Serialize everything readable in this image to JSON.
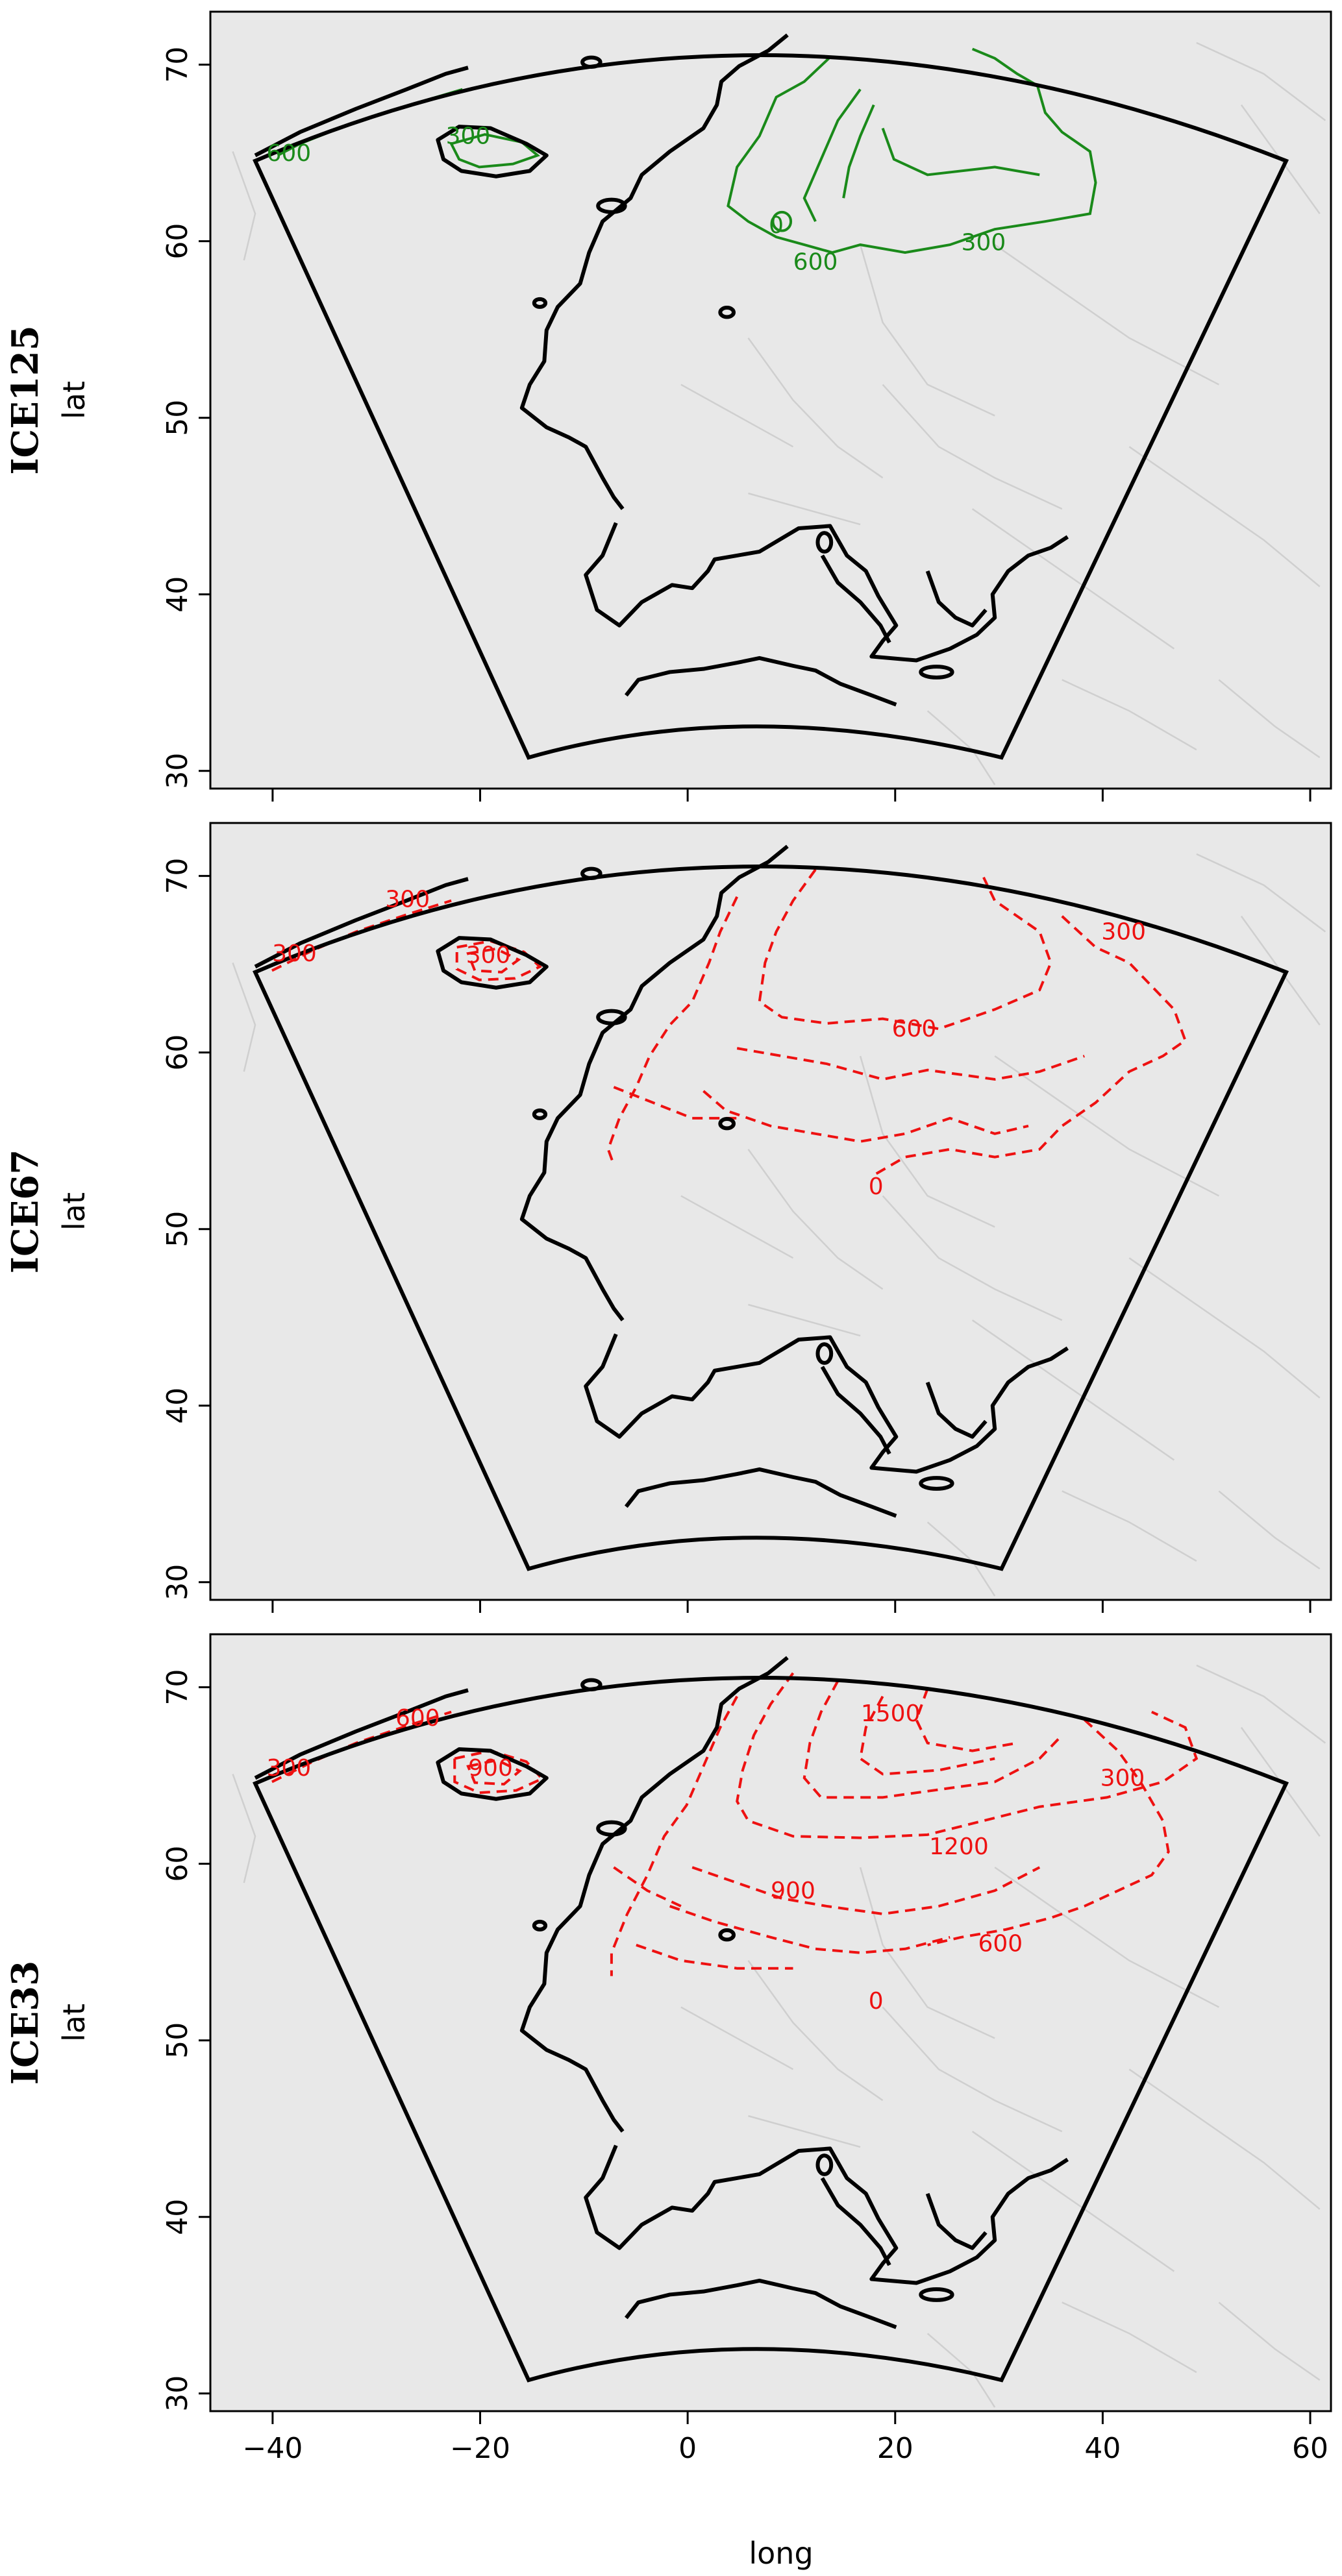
{
  "figure": {
    "xlabel": "long",
    "ylabel": "lat",
    "xticks": [
      "−40",
      "−20",
      "0",
      "20",
      "40",
      "60"
    ],
    "yticks": [
      "30",
      "40",
      "50",
      "60",
      "70"
    ]
  },
  "panels": [
    {
      "title": "ICE125",
      "contour_color": "#1a8a1a",
      "linestyle": "solid",
      "contour_labels": [
        "300",
        "600",
        "300",
        "600",
        "0"
      ]
    },
    {
      "title": "ICE67",
      "contour_color": "#ee1111",
      "linestyle": "dashed",
      "contour_labels": [
        "300",
        "300",
        "300",
        "300",
        "600",
        "0"
      ]
    },
    {
      "title": "ICE33",
      "contour_color": "#ee1111",
      "linestyle": "dashed",
      "contour_labels": [
        "600",
        "300",
        "900",
        "1500",
        "1200",
        "900",
        "600",
        "300",
        "0"
      ]
    }
  ],
  "chart_data": {
    "type": "contour",
    "x_axis": {
      "label": "long",
      "range": [
        -46,
        62
      ],
      "ticks": [
        -40,
        -20,
        0,
        20,
        40,
        60
      ]
    },
    "y_axis": {
      "label": "lat",
      "range": [
        29,
        73
      ],
      "ticks": [
        30,
        40,
        50,
        60,
        70
      ]
    },
    "domain_corners_lonlat": [
      [
        -42,
        65
      ],
      [
        7.5,
        72
      ],
      [
        58,
        65
      ],
      [
        29.5,
        30.6
      ],
      [
        7.5,
        33.5
      ],
      [
        -14.5,
        30.6
      ]
    ],
    "panels": [
      {
        "name": "ICE125",
        "contour_levels": [
          0,
          300,
          600
        ]
      },
      {
        "name": "ICE67",
        "contour_levels": [
          0,
          300,
          600
        ]
      },
      {
        "name": "ICE33",
        "contour_levels": [
          0,
          300,
          600,
          900,
          1200,
          1500
        ]
      }
    ]
  }
}
